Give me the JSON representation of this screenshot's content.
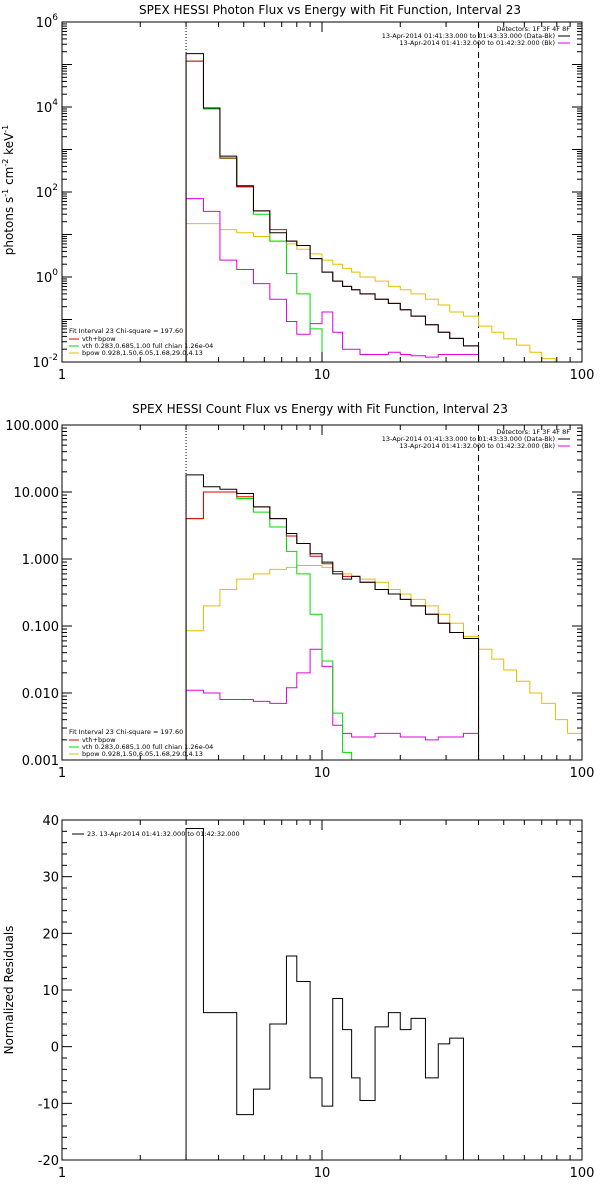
{
  "colors": {
    "total": "#000000",
    "vth": "#00dd00",
    "bpow": "#e6c000",
    "vth_bpow": "#e00000",
    "resid": "#000000",
    "magenta": "#e000e0"
  },
  "chart_data": [
    {
      "type": "line",
      "title": "SPEX HESSI Photon Flux vs Energy with Fit Function, Interval 23",
      "ylabel_main": "photons s",
      "ylabel_sup1": "-1",
      "ylabel_mid": " cm",
      "ylabel_sup2": "-2",
      "ylabel_end": " keV",
      "ylabel_sup3": "-1",
      "xscale": "log",
      "yscale": "log",
      "xlim": [
        1,
        100
      ],
      "ylim": [
        0.01,
        1000000
      ],
      "xticks": [
        1,
        10,
        100
      ],
      "xtick_labels": [
        "1",
        "10",
        "100"
      ],
      "yticks": [
        0.01,
        1,
        100,
        10000,
        1000000
      ],
      "ytick_bases": [
        "10",
        "10",
        "10",
        "10",
        "10"
      ],
      "ytick_exps": [
        "-2",
        "0",
        "2",
        "4",
        "6"
      ],
      "vlines": [
        {
          "x": 3,
          "style": "dotted"
        },
        {
          "x": 40,
          "style": "dashed"
        }
      ],
      "legend_header": "Detectors: 1F 3F 4F 8F",
      "legend_lines": [
        "13-Apr-2014 01:41:33.000 to 01:43:33.000 (Data-Bk)",
        "13-Apr-2014 01:41:32.000 to 01:42:32.000 (Bk)"
      ],
      "fit_legend": [
        "Fit Interval 23   Chi-square = 197.60",
        "vth+bpow",
        "vth 0.283,0.685,1.00  full chian 1.26e-04",
        "bpow 0.928,1.50,6.05,1.68,29.0,4.13"
      ],
      "edges": [
        3,
        3.5,
        4.05,
        4.7,
        5.45,
        6.3,
        7.3,
        8,
        9,
        10,
        11,
        12,
        13,
        14,
        16,
        18,
        20,
        22,
        25,
        28,
        31,
        35,
        40
      ],
      "series": [
        {
          "key": "total",
          "values": [
            180000,
            9500,
            700,
            140,
            36,
            11,
            7,
            5.5,
            2.7,
            1.3,
            0.8,
            0.6,
            0.5,
            0.4,
            0.3,
            0.24,
            0.17,
            0.12,
            0.075,
            0.05,
            0.036,
            0.024
          ]
        },
        {
          "key": "vth",
          "values": [
            120000,
            9000,
            620,
            130,
            30,
            7,
            1.2,
            0.4,
            0.06,
            0.005
          ]
        },
        {
          "key": "vth_bpow",
          "values": [
            120000,
            9500,
            630,
            135,
            36,
            13,
            7,
            5.5,
            2.7,
            1.3,
            0.8,
            0.6,
            0.5,
            0.4,
            0.3,
            0.24,
            0.17,
            0.12,
            0.075,
            0.05,
            0.036,
            0.024
          ]
        },
        {
          "key": "bpow",
          "edges": [
            3,
            3.5,
            4.05,
            4.7,
            5.45,
            6.3,
            7.3,
            8,
            9,
            10,
            11,
            12,
            13,
            14,
            16,
            18,
            20,
            22,
            25,
            28,
            31,
            35,
            40,
            45,
            50,
            56,
            63,
            70,
            79,
            88,
            100
          ],
          "values": [
            18,
            18,
            13,
            11,
            9,
            7,
            6,
            4.5,
            3.5,
            2.5,
            2,
            1.6,
            1.3,
            1,
            0.8,
            0.6,
            0.5,
            0.4,
            0.3,
            0.22,
            0.15,
            0.12,
            0.07,
            0.05,
            0.035,
            0.025,
            0.017,
            0.012,
            0.008,
            0.006
          ]
        },
        {
          "key": "magenta",
          "values": [
            70,
            35,
            2.5,
            1.5,
            0.7,
            0.3,
            0.09,
            0.045,
            0.08,
            0.15,
            0.05,
            0.02,
            0.02,
            0.015,
            0.015,
            0.017,
            0.015,
            0.014,
            0.013,
            0.015,
            0.015,
            0.015
          ]
        }
      ]
    },
    {
      "type": "line",
      "title": "SPEX HESSI Count Flux vs Energy with Fit Function, Interval 23",
      "xscale": "log",
      "yscale": "log",
      "xlim": [
        1,
        100
      ],
      "ylim": [
        0.001,
        100
      ],
      "xticks": [
        1,
        10,
        100
      ],
      "xtick_labels": [
        "1",
        "10",
        "100"
      ],
      "yticks": [
        0.001,
        0.01,
        0.1,
        1,
        10,
        100
      ],
      "ytick_labels": [
        "0.001",
        "0.010",
        "0.100",
        "1.000",
        "10.000",
        "100.000"
      ],
      "vlines": [
        {
          "x": 3,
          "style": "dotted"
        },
        {
          "x": 40,
          "style": "dashed"
        }
      ],
      "legend_header": "Detectors: 1F 3F 4F 8F",
      "legend_lines": [
        "13-Apr-2014 01:41:33.000 to 01:43:33.000 (Data-Bk)",
        "13-Apr-2014 01:41:32.000 to 01:42:32.000 (Bk)"
      ],
      "fit_legend": [
        "Fit Interval 23   Chi-square = 197.60",
        "vth+bpow",
        "vth 0.283,0.685,1.00  full chian 1.26e-04",
        "bpow 0.928,1.50,6.05,1.68,29.0,4.13"
      ],
      "edges": [
        3,
        3.5,
        4.05,
        4.7,
        5.45,
        6.3,
        7.3,
        8,
        9,
        10,
        11,
        12,
        13,
        14,
        16,
        18,
        20,
        22,
        25,
        28,
        31,
        35,
        40
      ],
      "series": [
        {
          "key": "total",
          "values": [
            18,
            12,
            11,
            9.5,
            6,
            4,
            2.4,
            1.7,
            1.2,
            0.9,
            0.6,
            0.5,
            0.55,
            0.45,
            0.35,
            0.3,
            0.25,
            0.2,
            0.15,
            0.11,
            0.08,
            0.065
          ]
        },
        {
          "key": "vth",
          "values": [
            4,
            10,
            10,
            8,
            5,
            3,
            1.3,
            0.6,
            0.15,
            0.03,
            0.005,
            0.0013
          ]
        },
        {
          "key": "vth_bpow",
          "values": [
            4,
            10,
            10,
            8.5,
            6,
            4,
            2.2,
            1.7,
            1.1,
            0.85,
            0.65,
            0.55,
            0.55,
            0.45,
            0.35,
            0.3,
            0.25,
            0.2,
            0.15,
            0.11,
            0.08,
            0.065
          ]
        },
        {
          "key": "bpow",
          "edges": [
            3,
            3.5,
            4.05,
            4.7,
            5.45,
            6.3,
            7.3,
            8,
            9,
            10,
            11,
            12,
            13,
            14,
            16,
            18,
            20,
            22,
            25,
            28,
            31,
            35,
            40,
            45,
            50,
            56,
            63,
            70,
            79,
            88,
            100
          ],
          "values": [
            0.085,
            0.2,
            0.35,
            0.5,
            0.6,
            0.7,
            0.75,
            0.8,
            0.8,
            0.75,
            0.65,
            0.6,
            0.55,
            0.5,
            0.45,
            0.35,
            0.3,
            0.25,
            0.2,
            0.15,
            0.11,
            0.07,
            0.045,
            0.032,
            0.022,
            0.015,
            0.01,
            0.007,
            0.004,
            0.0025
          ]
        },
        {
          "key": "magenta",
          "values": [
            0.011,
            0.01,
            0.008,
            0.008,
            0.0075,
            0.007,
            0.012,
            0.02,
            0.045,
            0.025,
            0.0033,
            0.0025,
            0.0022,
            0.0022,
            0.0025,
            0.0025,
            0.0022,
            0.0022,
            0.002,
            0.0022,
            0.0022,
            0.0025
          ]
        }
      ]
    },
    {
      "type": "line",
      "ylabel": "Normalized Residuals",
      "xscale": "log",
      "yscale": "linear",
      "xlim": [
        1,
        100
      ],
      "ylim": [
        -20,
        40
      ],
      "xticks": [
        1,
        10,
        100
      ],
      "xtick_labels": [
        "1",
        "10",
        "100"
      ],
      "yticks": [
        -20,
        -10,
        0,
        10,
        20,
        30,
        40
      ],
      "ytick_labels": [
        "-20",
        "-10",
        "0",
        "10",
        "20",
        "30",
        "40"
      ],
      "legend_lines": [
        "23. 13-Apr-2014 01:41:32.000 to 01:42:32.000"
      ],
      "edges": [
        3,
        3.5,
        4.05,
        4.7,
        5.45,
        6.3,
        7.3,
        8,
        9,
        10,
        11,
        12,
        13,
        14,
        16,
        18,
        20,
        22,
        25,
        28,
        31,
        35,
        40
      ],
      "series": [
        {
          "key": "resid",
          "values": [
            38.5,
            6,
            6,
            -12,
            -7.5,
            4,
            16,
            11.5,
            -5.5,
            -10.5,
            8.5,
            3,
            -5.5,
            -9.5,
            3.5,
            6,
            3,
            5,
            -5.5,
            0.5,
            1.5,
            -20
          ]
        }
      ]
    }
  ]
}
